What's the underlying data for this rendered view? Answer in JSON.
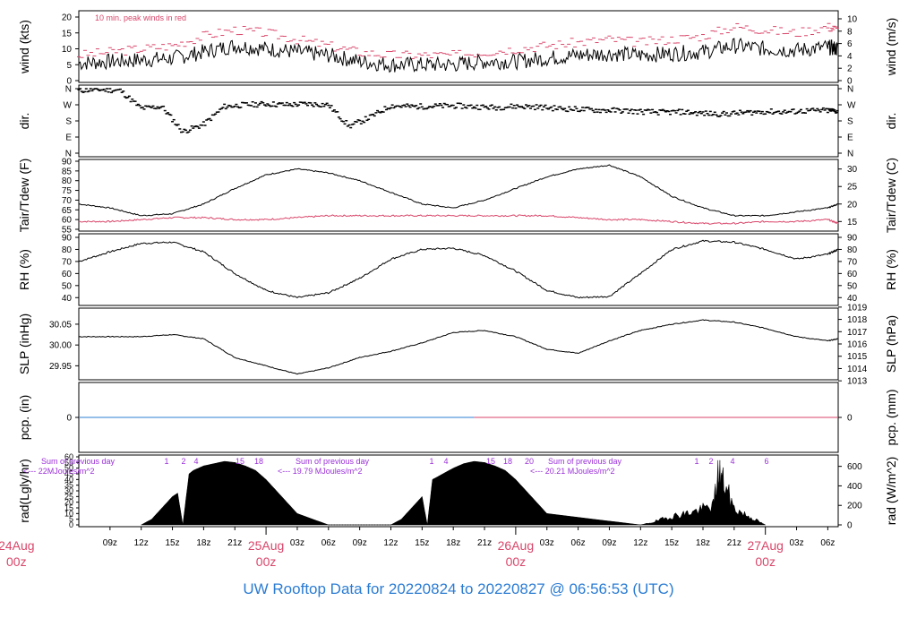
{
  "colors": {
    "black": "#000000",
    "red": "#d9466a",
    "blue": "#2b7cd3",
    "purple": "#9b30d9"
  },
  "footer": {
    "title": "UW Rooftop Data for 20220824  to  20220827 @ 06:56:53  (UTC)"
  },
  "time_axis": {
    "hour_ticks": [
      "09z",
      "12z",
      "15z",
      "18z",
      "21z",
      "03z",
      "06z",
      "09z",
      "12z",
      "15z",
      "18z",
      "21z",
      "03z",
      "06z",
      "09z",
      "12z",
      "15z",
      "18z",
      "21z",
      "03z",
      "06z"
    ],
    "day_labels": [
      {
        "date": "24Aug",
        "hour": "00z"
      },
      {
        "date": "25Aug",
        "hour": "00z"
      },
      {
        "date": "26Aug",
        "hour": "00z"
      },
      {
        "date": "27Aug",
        "hour": "00z"
      }
    ]
  },
  "chart_data": [
    {
      "type": "line",
      "panel": "wind",
      "ylabel_left": "wind (kts)",
      "ylabel_right": "wind (m/s)",
      "ylim": [
        0,
        20
      ],
      "yticks_left": [
        "0",
        "5",
        "10",
        "15",
        "20"
      ],
      "yticks_right": [
        "0",
        "2",
        "4",
        "6",
        "8",
        "10"
      ],
      "annotation": "10 min. peak winds in red",
      "series": [
        {
          "name": "wind",
          "color": "#000000",
          "x": [
            6,
            9,
            12,
            15,
            18,
            21,
            24,
            27,
            30,
            33,
            36,
            39,
            42,
            45,
            48,
            51,
            54,
            57,
            60,
            63,
            66,
            69,
            72,
            75,
            78,
            79
          ],
          "values": [
            5.5,
            6,
            6.5,
            7,
            9,
            11,
            10,
            9,
            8,
            6,
            5,
            5,
            5,
            6,
            6,
            7,
            8,
            8.5,
            8,
            8.5,
            9,
            11,
            10,
            9.5,
            10.5,
            10
          ]
        },
        {
          "name": "10 min. peak winds",
          "color": "#d9466a",
          "x": [
            6,
            9,
            12,
            15,
            18,
            21,
            24,
            27,
            30,
            33,
            36,
            39,
            42,
            45,
            48,
            51,
            54,
            57,
            60,
            63,
            66,
            69,
            72,
            75,
            78,
            79
          ],
          "values": [
            8,
            9,
            10,
            11,
            14,
            16,
            15,
            13,
            11,
            9,
            8,
            8,
            8,
            9,
            10,
            11,
            12,
            13,
            12,
            13,
            14,
            17,
            16,
            15,
            17,
            16
          ]
        }
      ]
    },
    {
      "type": "scatter",
      "panel": "dir",
      "ylabel_left": "dir.",
      "ylabel_right": "dir.",
      "yticks": [
        "N",
        "E",
        "S",
        "W",
        "N"
      ],
      "series": [
        {
          "name": "direction",
          "x": [
            6,
            8,
            10,
            12,
            14,
            16,
            18,
            20,
            22,
            24,
            26,
            28,
            30,
            32,
            34,
            36,
            38,
            40,
            42,
            44,
            46,
            48,
            50,
            52,
            54,
            56,
            58,
            60,
            62,
            64,
            66,
            68,
            70,
            72,
            74,
            76,
            78,
            79
          ],
          "values": [
            350,
            355,
            350,
            250,
            260,
            120,
            160,
            260,
            270,
            275,
            270,
            275,
            270,
            150,
            200,
            265,
            260,
            262,
            265,
            260,
            255,
            262,
            258,
            250,
            245,
            240,
            238,
            232,
            228,
            230,
            222,
            218,
            226,
            232,
            230,
            236,
            238,
            235
          ]
        }
      ]
    },
    {
      "type": "line",
      "panel": "temperature",
      "ylabel_left": "Tair/Tdew (F)",
      "ylabel_right": "Tair/Tdew (C)",
      "ylim": [
        55,
        90
      ],
      "yticks_left": [
        "55",
        "60",
        "65",
        "70",
        "75",
        "80",
        "85",
        "90"
      ],
      "yticks_right": [
        "15",
        "20",
        "25",
        "30"
      ],
      "series": [
        {
          "name": "Tair",
          "color": "#000000",
          "x": [
            6,
            9,
            12,
            15,
            18,
            21,
            24,
            27,
            30,
            33,
            36,
            39,
            42,
            45,
            48,
            51,
            54,
            57,
            60,
            63,
            66,
            69,
            72,
            75,
            78,
            79
          ],
          "values": [
            68,
            66,
            62,
            63,
            68,
            76,
            83,
            86,
            84,
            80,
            74,
            68,
            66,
            70,
            76,
            82,
            86,
            88,
            82,
            72,
            66,
            62,
            62,
            64,
            66,
            68
          ]
        },
        {
          "name": "Tdew",
          "color": "#d9466a",
          "x": [
            6,
            9,
            12,
            15,
            18,
            21,
            24,
            27,
            30,
            33,
            36,
            39,
            42,
            45,
            48,
            51,
            54,
            57,
            60,
            63,
            66,
            69,
            72,
            75,
            78,
            79
          ],
          "values": [
            59,
            59,
            60,
            61,
            61,
            60,
            60,
            61,
            62,
            62,
            62,
            62,
            62,
            62,
            62,
            62,
            61,
            60,
            60,
            59,
            58,
            58,
            59,
            59,
            60,
            58
          ]
        }
      ]
    },
    {
      "type": "line",
      "panel": "rh",
      "ylabel_left": "RH (%)",
      "ylabel_right": "RH (%)",
      "ylim": [
        35,
        90
      ],
      "yticks": [
        "40",
        "50",
        "60",
        "70",
        "80",
        "90"
      ],
      "series": [
        {
          "name": "RH",
          "color": "#000000",
          "x": [
            6,
            9,
            12,
            15,
            18,
            21,
            24,
            27,
            30,
            33,
            36,
            39,
            42,
            45,
            48,
            51,
            54,
            57,
            60,
            63,
            66,
            69,
            72,
            75,
            78,
            79
          ],
          "values": [
            70,
            78,
            85,
            86,
            78,
            60,
            46,
            40,
            44,
            56,
            72,
            80,
            81,
            75,
            62,
            46,
            40,
            41,
            60,
            80,
            87,
            86,
            80,
            72,
            76,
            80
          ]
        }
      ]
    },
    {
      "type": "line",
      "panel": "slp",
      "ylabel_left": "SLP (inHg)",
      "ylabel_right": "SLP (hPa)",
      "ylim": [
        29.925,
        30.08
      ],
      "yticks_left": [
        "29.95",
        "30.00",
        "30.05"
      ],
      "yticks_right": [
        "1013",
        "1014",
        "1015",
        "1016",
        "1017",
        "1018",
        "1019"
      ],
      "series": [
        {
          "name": "SLP",
          "color": "#000000",
          "x": [
            6,
            9,
            12,
            15,
            18,
            21,
            24,
            27,
            30,
            33,
            36,
            39,
            42,
            45,
            48,
            51,
            54,
            57,
            60,
            63,
            66,
            69,
            72,
            75,
            78,
            79
          ],
          "values": [
            30.02,
            30.02,
            30.02,
            30.025,
            30.015,
            29.97,
            29.95,
            29.93,
            29.945,
            29.97,
            29.985,
            30.005,
            30.03,
            30.035,
            30.02,
            29.99,
            29.98,
            30.01,
            30.035,
            30.05,
            30.06,
            30.055,
            30.04,
            30.02,
            30.01,
            30.015
          ]
        }
      ]
    },
    {
      "type": "line",
      "panel": "pcp",
      "ylabel_left": "pcp. (in)",
      "ylabel_right": "pcp. (mm)",
      "yticks_left": [
        "0"
      ],
      "yticks_right": [
        "0"
      ],
      "series": [
        {
          "name": "pcp day1",
          "color": "#2b7cd3",
          "x": [
            6,
            44
          ],
          "values": [
            0,
            0
          ]
        },
        {
          "name": "pcp day2",
          "color": "#d9466a",
          "x": [
            44,
            79
          ],
          "values": [
            0,
            0
          ]
        }
      ]
    },
    {
      "type": "area",
      "panel": "radiation",
      "ylabel_left": "rad(Lgly/hr)",
      "ylabel_right": "rad (W/m^2)",
      "ylim": [
        0,
        60
      ],
      "yticks_left": [
        "0",
        "5",
        "10",
        "15",
        "20",
        "25",
        "30",
        "35",
        "40",
        "45",
        "50",
        "55",
        "60"
      ],
      "yticks_right": [
        "0",
        "200",
        "400",
        "600"
      ],
      "annotations": [
        {
          "line1": "Sum of previous day",
          "line2": "<--- 22MJoules/m^2"
        },
        {
          "line1": "Sum of previous day",
          "line2": "<--- 19.79 MJoules/m^2"
        },
        {
          "line1": "Sum of previous day",
          "line2": "<--- 20.21 MJoules/m^2"
        }
      ],
      "hour_markers_1": [
        "1",
        "2",
        "4",
        "15",
        "18"
      ],
      "hour_markers_2": [
        "1",
        "4",
        "15",
        "18",
        "20"
      ],
      "hour_markers_3": [
        "1",
        "2",
        "4",
        "6"
      ],
      "series": [
        {
          "name": "radiation",
          "x": [
            12,
            13,
            14,
            14.5,
            15,
            15.5,
            16,
            16.6,
            17,
            18,
            19,
            20,
            21,
            22,
            23,
            24,
            25,
            26,
            27,
            30,
            36,
            37,
            38,
            38.5,
            39,
            39.5,
            40,
            41,
            42,
            43,
            44,
            45,
            46,
            47,
            48,
            49,
            50,
            51,
            60,
            61,
            62,
            63,
            64,
            65,
            66,
            67,
            67.5,
            68,
            69,
            70,
            71,
            72
          ],
          "values": [
            0,
            5,
            15,
            20,
            25,
            28,
            0,
            45,
            48,
            52,
            54,
            56,
            55,
            52,
            48,
            40,
            30,
            20,
            10,
            0,
            0,
            5,
            15,
            20,
            25,
            0,
            40,
            45,
            50,
            54,
            56,
            55,
            52,
            48,
            40,
            30,
            20,
            10,
            0,
            2,
            5,
            8,
            10,
            12,
            15,
            18,
            50,
            40,
            15,
            10,
            5,
            0
          ]
        }
      ]
    }
  ]
}
